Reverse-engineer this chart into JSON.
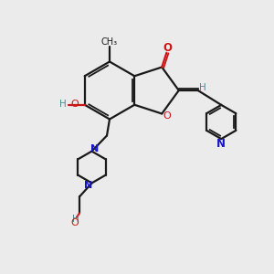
{
  "bg_color": "#ebebeb",
  "bond_color": "#1a1a1a",
  "nitrogen_color": "#1515cc",
  "oxygen_color": "#cc1515",
  "h_color": "#4a8a8a",
  "figsize": [
    3.0,
    3.0
  ],
  "dpi": 100,
  "xlim": [
    0,
    10
  ],
  "ylim": [
    0,
    10
  ]
}
